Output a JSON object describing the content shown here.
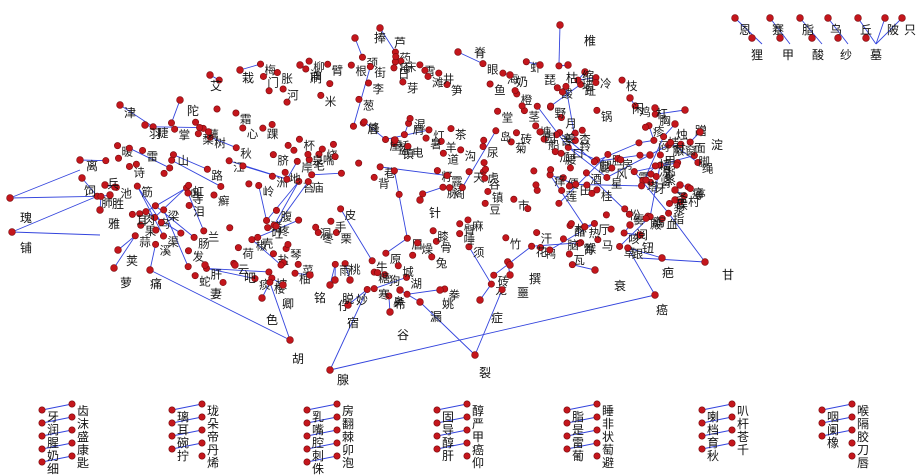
{
  "graph": {
    "node_color": "#c4161c",
    "edge_color": "#3344dd",
    "outer_labels": [
      "捧",
      "芦",
      "脊",
      "椎",
      "恩",
      "蹇",
      "脂",
      "乌",
      "丘",
      "陂",
      "只",
      "狸",
      "甲",
      "酸",
      "纱",
      "墓",
      "刷",
      "琵",
      "枯",
      "缩",
      "艾",
      "栽",
      "奶",
      "闲",
      "杠",
      "蹭",
      "淀",
      "烛",
      "津",
      "羽",
      "陀",
      "培",
      "蒸",
      "圣",
      "碟",
      "离",
      "饲",
      "瑰",
      "铺",
      "兵",
      "胜",
      "雅",
      "荚",
      "萝",
      "痛",
      "妻",
      "吧",
      "色",
      "卿",
      "仔",
      "宿",
      "谷",
      "胡",
      "裂",
      "腺",
      "癌",
      "疤",
      "甘",
      "衰",
      "症",
      "漏",
      "脱",
      "妙",
      "铭",
      "希",
      "姚",
      "噩",
      "撰",
      "镇",
      "针",
      "钮",
      "阅"
    ],
    "dense_labels": [
      "梨",
      "诗",
      "秋",
      "鸭",
      "浆",
      "猪",
      "琴",
      "锅",
      "砖",
      "绳",
      "药",
      "粥",
      "桥",
      "铃",
      "虾",
      "蛇",
      "杯",
      "盆",
      "灯",
      "扇",
      "床",
      "船",
      "马",
      "牛",
      "羊",
      "鱼",
      "鸟",
      "虎",
      "龙",
      "兔",
      "猴",
      "鸡",
      "狗",
      "米",
      "面",
      "茶",
      "酒",
      "糖",
      "盐",
      "油",
      "醋",
      "菜",
      "瓜",
      "豆",
      "果",
      "花",
      "草",
      "树",
      "林",
      "竹",
      "松",
      "柳",
      "桃",
      "李",
      "杏",
      "枣",
      "栗",
      "桔",
      "橙",
      "柚",
      "藕",
      "笋",
      "葱",
      "蒜",
      "姜",
      "椒",
      "桂",
      "兰",
      "菊",
      "梅",
      "莲",
      "荷",
      "苔",
      "芽",
      "叶",
      "根",
      "茎",
      "枝",
      "籽",
      "壳",
      "皮",
      "肉",
      "骨",
      "血",
      "筋",
      "脉",
      "肝",
      "肺",
      "肾",
      "胃",
      "肠",
      "心",
      "脑",
      "眼",
      "耳",
      "鼻",
      "口",
      "舌",
      "牙",
      "唇",
      "脸",
      "颈",
      "肩",
      "背",
      "腰",
      "腿",
      "脚",
      "手",
      "指",
      "掌",
      "拳",
      "臂",
      "胸",
      "腹",
      "脐",
      "臀",
      "膝",
      "踝",
      "跟",
      "趾",
      "甲",
      "发",
      "毛",
      "须",
      "眉",
      "睫",
      "汗",
      "泪",
      "唾",
      "尿",
      "便",
      "屁",
      "痰",
      "脓",
      "疮",
      "疹",
      "癣",
      "痒",
      "痛",
      "疼",
      "酸",
      "麻",
      "胀",
      "闷",
      "咳",
      "喘",
      "吐",
      "泻",
      "烧",
      "冷",
      "热",
      "寒",
      "暑",
      "凉",
      "暖",
      "湿",
      "燥",
      "风",
      "雨",
      "雪",
      "霜",
      "露",
      "雾",
      "云",
      "雷",
      "电",
      "虹",
      "霞",
      "星",
      "月",
      "日",
      "天",
      "地",
      "山",
      "河",
      "湖",
      "海",
      "江",
      "溪",
      "泉",
      "井",
      "池",
      "塘",
      "沟",
      "渠",
      "岸",
      "滩",
      "岛",
      "洲",
      "峰",
      "岭",
      "谷",
      "洞",
      "坡",
      "原",
      "野",
      "田",
      "园",
      "村",
      "镇",
      "城",
      "市",
      "街",
      "巷",
      "路",
      "道",
      "门",
      "窗",
      "墙",
      "瓦",
      "砖",
      "梁",
      "柱",
      "楼",
      "阁",
      "亭",
      "塔",
      "庙",
      "寺",
      "殿",
      "堂",
      "厅",
      "房",
      "屋"
    ],
    "isolated_clusters": [
      {
        "items": [
          "牙",
          "润",
          "腥",
          "奶",
          "细"
        ],
        "pair_items": [
          "齿",
          "沫",
          "盛",
          "康",
          "匙"
        ]
      },
      {
        "items": [
          "璃",
          "耳",
          "碗",
          "拧"
        ],
        "pair_items": [
          "珑",
          "朵",
          "帝",
          "丹",
          "烯"
        ]
      },
      {
        "items": [
          "乳",
          "嘴",
          "腔",
          "刺",
          "侏"
        ],
        "pair_items": [
          "房",
          "翻",
          "棘",
          "卯",
          "泡"
        ]
      },
      {
        "items": [
          "固",
          "导",
          "醇",
          "肝"
        ],
        "pair_items": [
          "醇",
          "严",
          "甲",
          "癌",
          "仰"
        ]
      },
      {
        "items": [
          "脂",
          "是",
          "雷",
          "葡"
        ],
        "pair_items": [
          "睡",
          "非",
          "状",
          "萄",
          "避"
        ]
      },
      {
        "items": [
          "喇",
          "档",
          "育",
          "秋"
        ],
        "pair_items": [
          "叭",
          "杆",
          "苍",
          "千"
        ]
      },
      {
        "items": [
          "咽",
          "阑",
          "橡"
        ],
        "pair_items": [
          "喉",
          "隔",
          "胶",
          "刀",
          "唇"
        ]
      }
    ]
  }
}
